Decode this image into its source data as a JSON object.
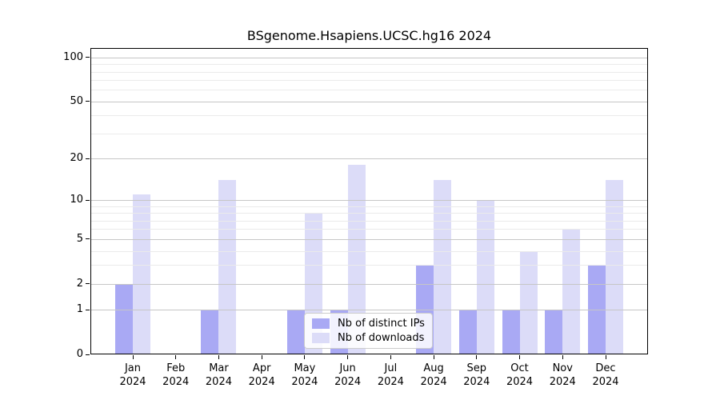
{
  "chart_data": {
    "type": "bar",
    "title": "BSgenome.Hsapiens.UCSC.hg16 2024",
    "year_label": "2024",
    "categories": [
      "Jan",
      "Feb",
      "Mar",
      "Apr",
      "May",
      "Jun",
      "Jul",
      "Aug",
      "Sep",
      "Oct",
      "Nov",
      "Dec"
    ],
    "series": [
      {
        "name": "Nb of distinct IPs",
        "color": "#a9a9f4",
        "values": [
          2,
          0,
          1,
          0,
          1,
          1,
          0,
          3,
          1,
          1,
          1,
          3
        ]
      },
      {
        "name": "Nb of downloads",
        "color": "#dcdcf8",
        "values": [
          11,
          0,
          14,
          0,
          8,
          18,
          0,
          14,
          10,
          4,
          6,
          14
        ]
      }
    ],
    "xlabel": "",
    "ylabel": "",
    "y_scale": "log10(1+x)",
    "y_ticks": [
      0,
      1,
      2,
      5,
      10,
      20,
      50,
      100
    ],
    "minor_gridlines": [
      3,
      4,
      6,
      7,
      8,
      9,
      30,
      40,
      60,
      70,
      80,
      90
    ],
    "ylim": [
      0,
      116
    ],
    "grid": "on",
    "legend_position": "inside-bottom-center",
    "colors": {
      "bar_ips": "#a9a9f4",
      "bar_downloads": "#dcdcf8",
      "axis": "#000000",
      "major_grid": "#c6c6c6",
      "minor_grid": "#ebebeb",
      "legend_border": "#cccccc",
      "background": "#ffffff"
    }
  }
}
